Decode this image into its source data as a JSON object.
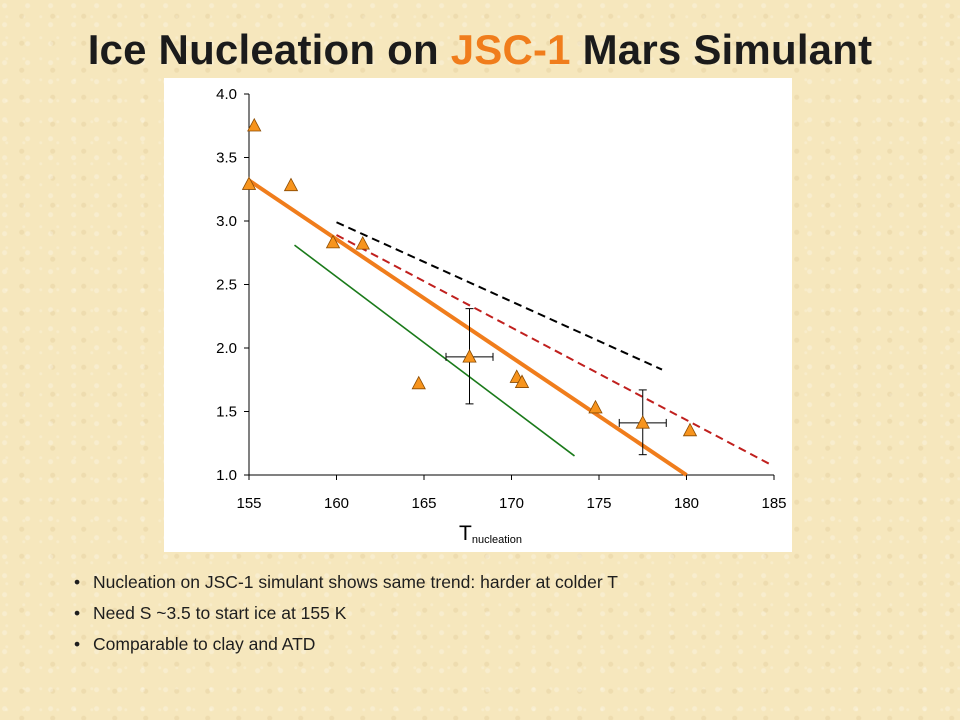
{
  "slide": {
    "title_pre": "Ice Nucleation on ",
    "title_accent": "JSC-1",
    "title_post": " Mars Simulant",
    "accent_color": "#f07d1c",
    "bullets": [
      "Nucleation on JSC-1 simulant shows same trend: harder at colder T",
      "Need S ~3.5 to start ice at 155 K",
      "Comparable to clay and ATD"
    ],
    "bullet_char": "•"
  },
  "chart_data": {
    "type": "scatter",
    "title": "",
    "xlabel_main": "T",
    "xlabel_sub": "nucleation",
    "ylabel": "",
    "xlim": [
      155,
      185
    ],
    "ylim": [
      1.0,
      4.0
    ],
    "x_ticks": [
      "155",
      "160",
      "165",
      "170",
      "175",
      "180",
      "185"
    ],
    "y_ticks": [
      "1.0",
      "1.5",
      "2.0",
      "2.5",
      "3.0",
      "3.5",
      "4.0"
    ],
    "grid": false,
    "legend": "none",
    "points": {
      "marker": "triangle",
      "color": "#f7941d",
      "x": [
        155.3,
        155.0,
        157.4,
        159.8,
        161.5,
        164.7,
        167.6,
        170.3,
        170.6,
        174.8,
        177.5,
        180.2
      ],
      "y": [
        3.75,
        3.29,
        3.28,
        2.83,
        2.82,
        1.72,
        1.93,
        1.77,
        1.73,
        1.53,
        1.41,
        1.35
      ]
    },
    "error_bars": [
      {
        "x": 167.6,
        "y": 1.93,
        "ylow": 1.56,
        "yhigh": 2.31,
        "xerr": 0.5
      },
      {
        "x": 177.5,
        "y": 1.41,
        "ylow": 1.16,
        "yhigh": 1.67,
        "xerr": 0.5
      }
    ],
    "lines": [
      {
        "style": "solid",
        "color": "#f07d1c",
        "x": [
          155.0,
          180.0
        ],
        "y": [
          3.32,
          1.0
        ]
      },
      {
        "style": "solid",
        "color": "#1a7a1a",
        "x": [
          157.6,
          173.6
        ],
        "y": [
          2.81,
          1.15
        ]
      },
      {
        "style": "dashed",
        "color": "#c0201e",
        "x": [
          160.0,
          184.7
        ],
        "y": [
          2.89,
          1.09
        ]
      },
      {
        "style": "dashed",
        "color": "#000000",
        "x": [
          160.0,
          178.6
        ],
        "y": [
          2.99,
          1.83
        ]
      }
    ]
  }
}
